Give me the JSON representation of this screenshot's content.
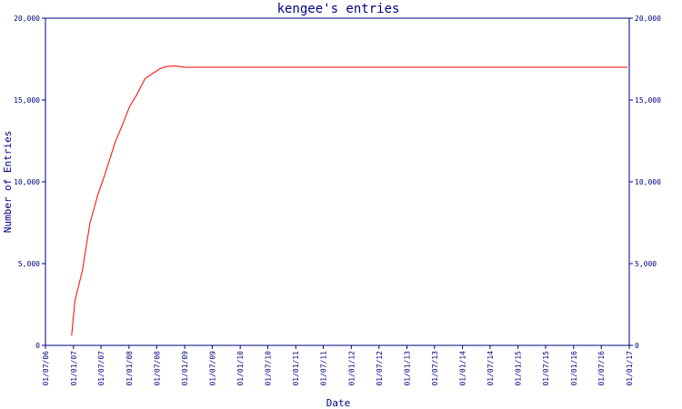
{
  "chart_data": {
    "type": "line",
    "title": "kengee's entries",
    "xlabel": "Date",
    "ylabel": "Number of Entries",
    "x_ticks": [
      "01/07/06",
      "01/01/07",
      "01/07/07",
      "01/01/08",
      "01/07/08",
      "01/01/09",
      "01/07/09",
      "01/01/10",
      "01/07/10",
      "01/01/11",
      "01/07/11",
      "01/01/12",
      "01/07/12",
      "01/01/13",
      "01/07/13",
      "01/01/14",
      "01/07/14",
      "01/01/15",
      "01/07/15",
      "01/01/16",
      "01/07/16",
      "01/01/17"
    ],
    "y_ticks": [
      "0",
      "5,000",
      "10,000",
      "15,000",
      "20,000"
    ],
    "ylim": [
      0,
      20000
    ],
    "xlim": [
      "2006-07-01",
      "2017-01-01"
    ],
    "grid": false,
    "series": [
      {
        "color": "#ff0000",
        "points": [
          {
            "x": "2006-12-20",
            "y": 600
          },
          {
            "x": "2007-01-10",
            "y": 2700
          },
          {
            "x": "2007-03-01",
            "y": 4600
          },
          {
            "x": "2007-04-20",
            "y": 7500
          },
          {
            "x": "2007-06-10",
            "y": 9200
          },
          {
            "x": "2007-08-01",
            "y": 10600
          },
          {
            "x": "2007-10-01",
            "y": 12400
          },
          {
            "x": "2007-11-20",
            "y": 13500
          },
          {
            "x": "2008-01-05",
            "y": 14600
          },
          {
            "x": "2008-02-20",
            "y": 15300
          },
          {
            "x": "2008-04-15",
            "y": 16300
          },
          {
            "x": "2008-06-01",
            "y": 16600
          },
          {
            "x": "2008-07-20",
            "y": 16900
          },
          {
            "x": "2008-09-01",
            "y": 17050
          },
          {
            "x": "2008-11-01",
            "y": 17080
          },
          {
            "x": "2009-01-01",
            "y": 17000
          },
          {
            "x": "2016-12-20",
            "y": 17000
          }
        ]
      }
    ]
  },
  "colors": {
    "axis": "#000080",
    "text": "#000080",
    "title": "#000080",
    "line": "#ff0000",
    "background": "#ffffff"
  }
}
